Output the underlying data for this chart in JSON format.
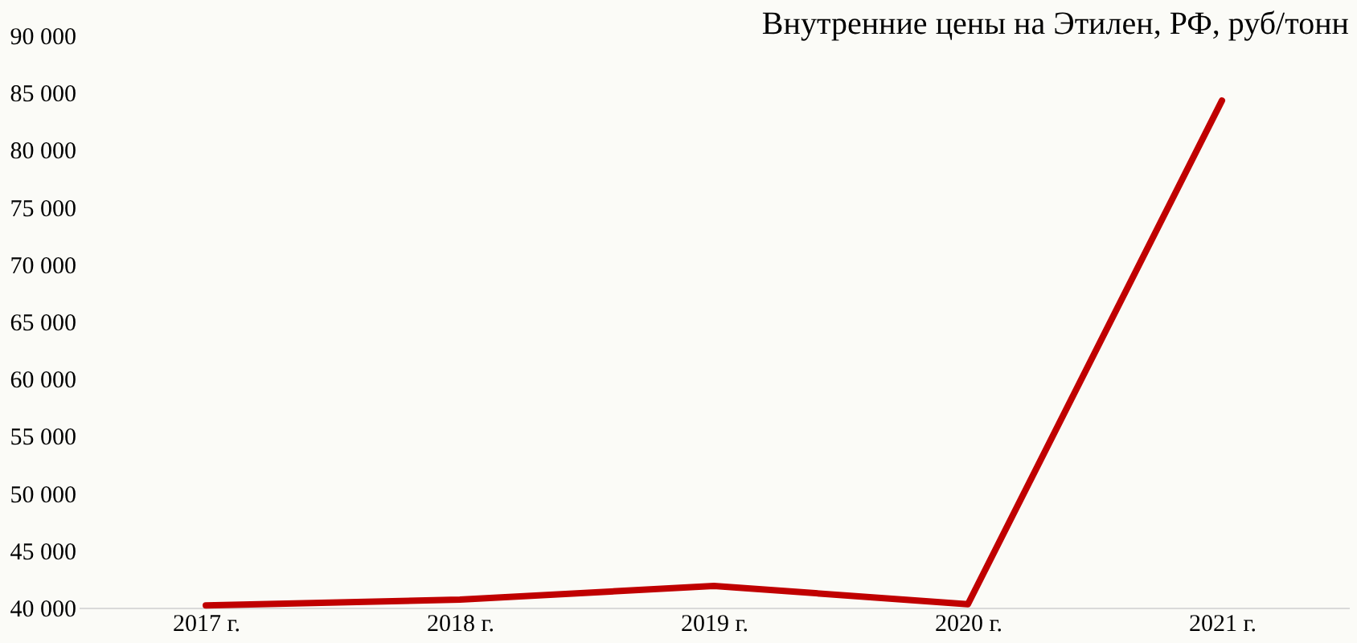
{
  "chart_data": {
    "type": "line",
    "title": "Внутренние цены на Этилен, РФ, руб/тонн",
    "categories": [
      "2017 г.",
      "2018 г.",
      "2019 г.",
      "2020 г.",
      "2021 г."
    ],
    "series": [
      {
        "color": "#c00000",
        "values": [
          40200,
          40700,
          41900,
          40300,
          84300
        ]
      }
    ],
    "ylim": [
      40000,
      90000
    ],
    "yticks": [
      {
        "value": 40000,
        "label": "40 000"
      },
      {
        "value": 45000,
        "label": "45 000"
      },
      {
        "value": 50000,
        "label": "50 000"
      },
      {
        "value": 55000,
        "label": "55 000"
      },
      {
        "value": 60000,
        "label": "60 000"
      },
      {
        "value": 65000,
        "label": "65 000"
      },
      {
        "value": 70000,
        "label": "70 000"
      },
      {
        "value": 75000,
        "label": "75 000"
      },
      {
        "value": 80000,
        "label": "80 000"
      },
      {
        "value": 85000,
        "label": "85 000"
      },
      {
        "value": 90000,
        "label": "90 000"
      }
    ],
    "grid": false,
    "marker": "none",
    "line_style": "solid"
  }
}
